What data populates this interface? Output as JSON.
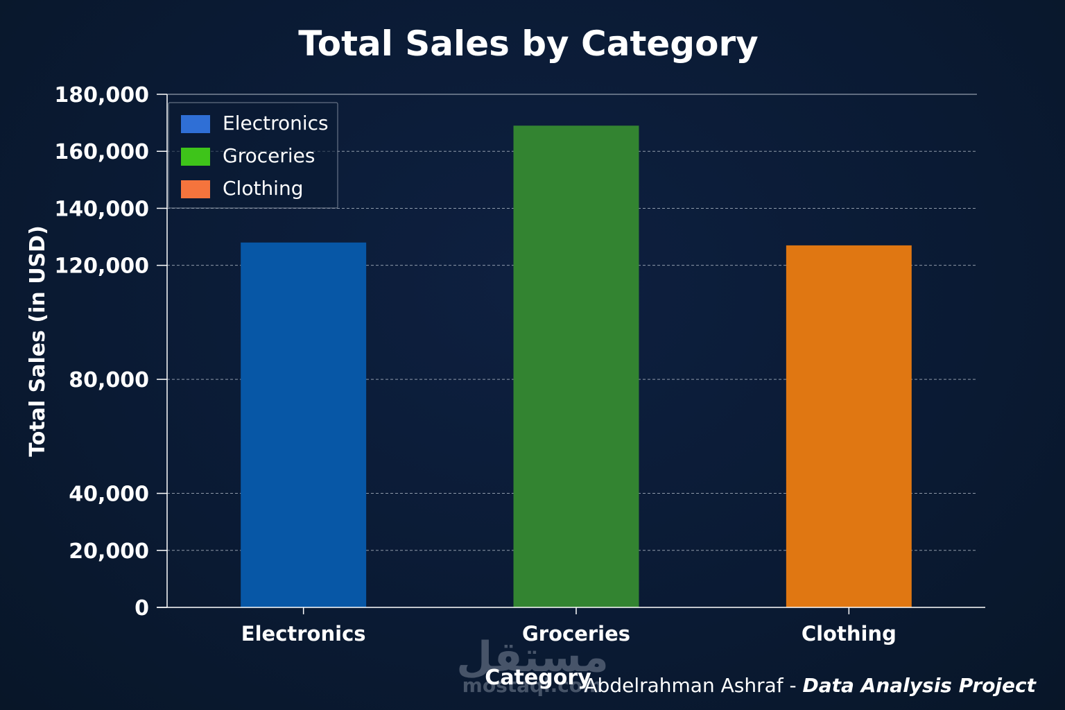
{
  "chart_data": {
    "type": "bar",
    "title": "Total Sales by Category",
    "xlabel": "Category",
    "ylabel": "Total Sales (in USD)",
    "categories": [
      "Electronics",
      "Groceries",
      "Clothing"
    ],
    "values": [
      128000,
      169000,
      127000
    ],
    "ylim": [
      0,
      180000
    ],
    "yticks": [
      {
        "value": 0,
        "label": "0"
      },
      {
        "value": 20000,
        "label": "20,000"
      },
      {
        "value": 40000,
        "label": "40,000"
      },
      {
        "value": 80000,
        "label": "80,000"
      },
      {
        "value": 120000,
        "label": "120,000"
      },
      {
        "value": 140000,
        "label": "140,000"
      },
      {
        "value": 160000,
        "label": "160,000"
      },
      {
        "value": 180000,
        "label": "180,000"
      }
    ],
    "grid": true,
    "legend": {
      "placement": "top-left",
      "entries": [
        {
          "label": "Electronics",
          "color": "#2f6fd6"
        },
        {
          "label": "Groceries",
          "color": "#3ec41a"
        },
        {
          "label": "Clothing",
          "color": "#f5743d"
        }
      ]
    },
    "bar_colors": [
      "#0757a6",
      "#338431",
      "#e07712"
    ]
  },
  "watermark": {
    "arabic": "مستقل",
    "latin": "mostaql.com"
  },
  "credit": {
    "author": "Abdelrahman Ashraf - ",
    "project": "Data Analysis Project"
  }
}
